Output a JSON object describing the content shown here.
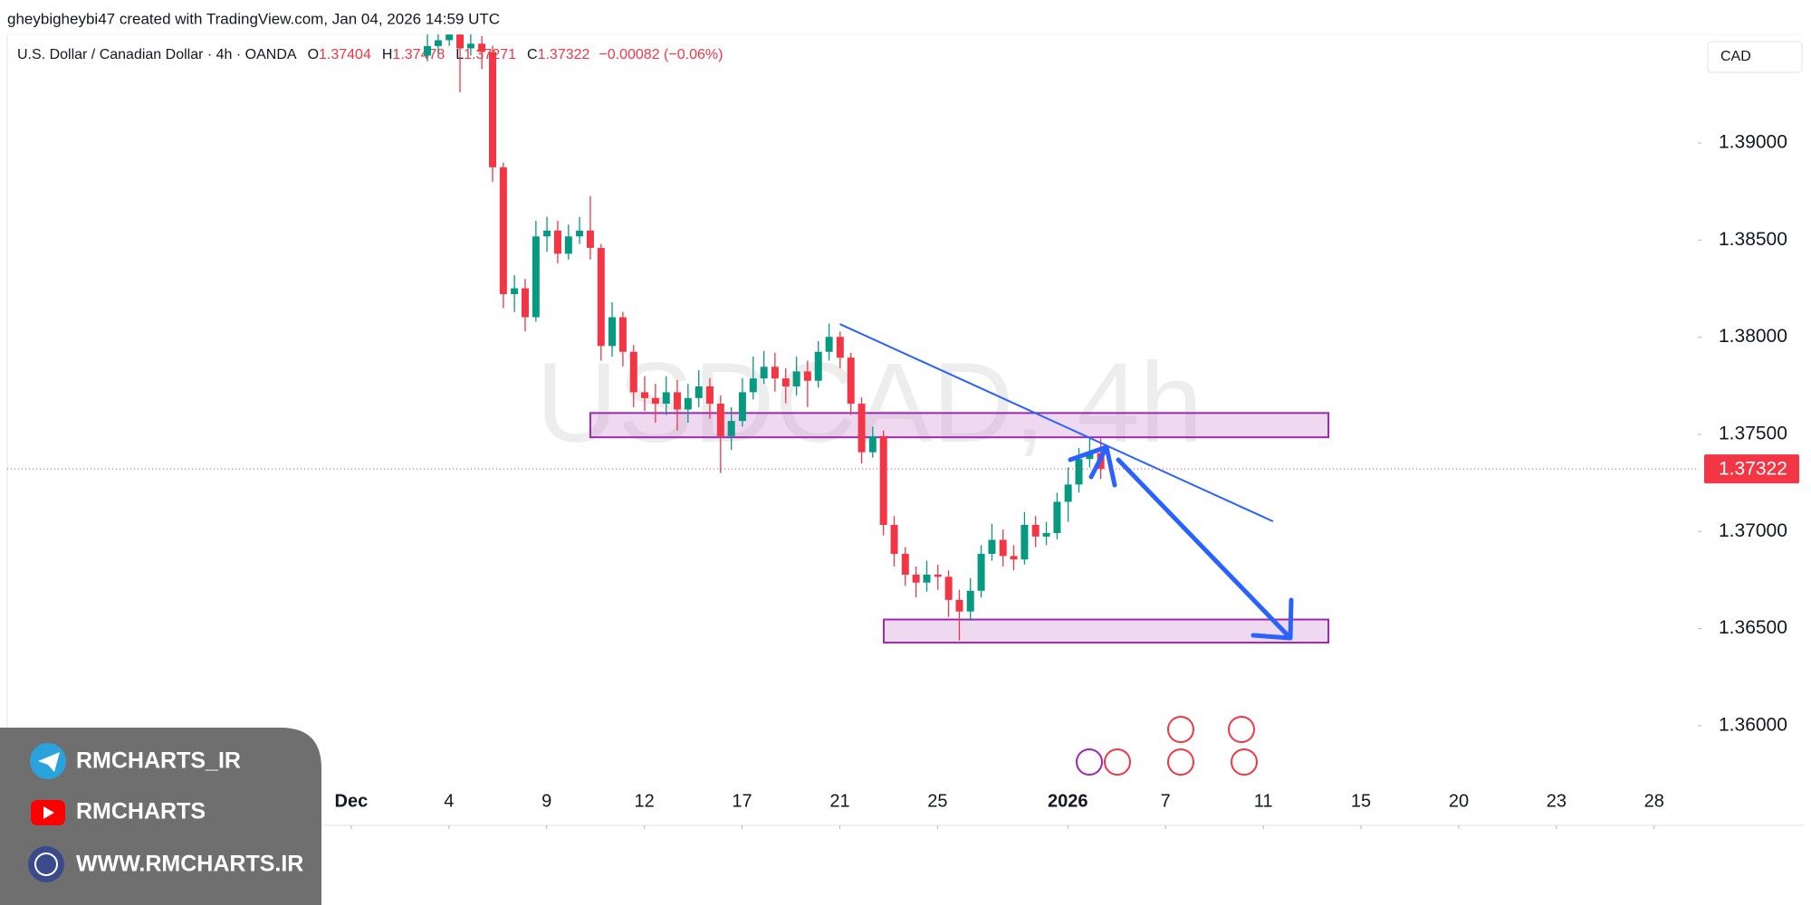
{
  "header": "gheybigheybi47 created with TradingView.com, Jan 04, 2026 14:59 UTC",
  "chart_data": {
    "type": "candlestick",
    "title": "U.S. Dollar / Canadian Dollar · 4h · OANDA",
    "ohlc": [
      {
        "key": "O",
        "value": 1.37404
      },
      {
        "key": "H",
        "value": 1.37478
      },
      {
        "key": "L",
        "value": 1.37271
      },
      {
        "key": "C",
        "value": 1.37322
      }
    ],
    "change": "−0.00082 (−0.06%)",
    "currency": "CAD",
    "watermark": "USDCAD, 4h",
    "up_color": "#089981",
    "down_color": "#f23645",
    "x": [
      2.34,
      2.67,
      3.01,
      3.34,
      3.67,
      4.01,
      4.34,
      4.67,
      5.01,
      5.34,
      5.67,
      6.01,
      6.34,
      6.67,
      7.01,
      7.34,
      7.67,
      8.01,
      8.34,
      8.67,
      9.01,
      9.34,
      9.67,
      10.01,
      10.34,
      10.67,
      11.01,
      11.34,
      11.67,
      12.01,
      12.34,
      12.67,
      13.01,
      13.34,
      13.67,
      14.01,
      14.34,
      14.67,
      15.01,
      15.34,
      15.67,
      16.01,
      16.34,
      16.67,
      17.01,
      17.34,
      17.67,
      18.01,
      18.34,
      18.67,
      19.01,
      19.34,
      19.67,
      20.01,
      20.34,
      20.67,
      21.01,
      21.34,
      21.67,
      22.01,
      22.34,
      22.67,
      23.01
    ],
    "open": [
      1.3945,
      1.39499,
      1.39529,
      1.39558,
      1.39487,
      1.39511,
      1.39469,
      1.38875,
      1.38222,
      1.38252,
      1.38103,
      1.38519,
      1.38549,
      1.3843,
      1.38519,
      1.38549,
      1.3846,
      1.37955,
      1.38103,
      1.37925,
      1.37717,
      1.37687,
      1.37658,
      1.37717,
      1.37628,
      1.37687,
      1.37747,
      1.37658,
      1.37491,
      1.37569,
      1.37717,
      1.37788,
      1.37848,
      1.37788,
      1.37747,
      1.37824,
      1.37776,
      1.37925,
      1.38002,
      1.37895,
      1.37658,
      1.37408,
      1.37491,
      1.37034,
      1.36885,
      1.36778,
      1.36737,
      1.36778,
      1.36767,
      1.36648,
      1.36588,
      1.36695,
      1.36885,
      1.36957,
      1.36874,
      1.36856,
      1.37034,
      1.36974,
      1.36992,
      1.37153,
      1.37242,
      1.37373,
      1.37404
    ],
    "high": [
      1.3956,
      1.3958,
      1.396,
      1.3959,
      1.3956,
      1.3955,
      1.395,
      1.389,
      1.3832,
      1.383,
      1.386,
      1.3862,
      1.386,
      1.3858,
      1.3862,
      1.38727,
      1.3848,
      1.3818,
      1.3813,
      1.3796,
      1.378,
      1.3776,
      1.378,
      1.3778,
      1.3776,
      1.3783,
      1.3779,
      1.377,
      1.3764,
      1.3779,
      1.379,
      1.3793,
      1.3792,
      1.3784,
      1.379,
      1.3788,
      1.3798,
      1.3807,
      1.3803,
      1.3792,
      1.3769,
      1.3754,
      1.3752,
      1.3708,
      1.3692,
      1.3682,
      1.3685,
      1.3683,
      1.368,
      1.367,
      1.3676,
      1.3693,
      1.3704,
      1.3701,
      1.3693,
      1.371,
      1.3708,
      1.3705,
      1.372,
      1.3733,
      1.3743,
      1.3748,
      1.37478
    ],
    "low": [
      1.3942,
      1.3946,
      1.395,
      1.39261,
      1.3945,
      1.3938,
      1.388,
      1.3815,
      1.3813,
      1.3803,
      1.3808,
      1.3844,
      1.3838,
      1.384,
      1.3848,
      1.384,
      1.3788,
      1.379,
      1.3785,
      1.3764,
      1.3762,
      1.3756,
      1.376,
      1.3752,
      1.3756,
      1.3764,
      1.3758,
      1.37301,
      1.3742,
      1.3754,
      1.3768,
      1.3776,
      1.3772,
      1.3766,
      1.377,
      1.3764,
      1.3774,
      1.3788,
      1.3784,
      1.376,
      1.3735,
      1.3738,
      1.3698,
      1.3682,
      1.3672,
      1.3666,
      1.3669,
      1.367,
      1.3656,
      1.3644,
      1.3654,
      1.3666,
      1.3685,
      1.3682,
      1.368,
      1.3683,
      1.3692,
      1.3693,
      1.3696,
      1.3705,
      1.372,
      1.3733,
      1.37271
    ],
    "close": [
      1.39499,
      1.39529,
      1.39558,
      1.39487,
      1.39511,
      1.39469,
      1.38875,
      1.38222,
      1.38252,
      1.38103,
      1.38519,
      1.38549,
      1.3843,
      1.38519,
      1.38549,
      1.3846,
      1.37955,
      1.38103,
      1.37925,
      1.37717,
      1.37687,
      1.37658,
      1.37717,
      1.37628,
      1.37687,
      1.37747,
      1.37658,
      1.37491,
      1.37569,
      1.37717,
      1.37788,
      1.37848,
      1.37788,
      1.37747,
      1.37824,
      1.37776,
      1.37925,
      1.38002,
      1.37895,
      1.37658,
      1.37408,
      1.37491,
      1.37034,
      1.36885,
      1.36778,
      1.36737,
      1.36778,
      1.36767,
      1.36648,
      1.36588,
      1.36695,
      1.36885,
      1.36957,
      1.36874,
      1.36856,
      1.37034,
      1.36974,
      1.36992,
      1.37153,
      1.37242,
      1.37373,
      1.37408,
      1.37322
    ],
    "last_price": 1.37322,
    "zones": [
      {
        "x": [
          7.34,
          30.0
        ],
        "y": [
          1.3761,
          1.37485
        ]
      },
      {
        "x": [
          16.35,
          30.0
        ],
        "y": [
          1.36547,
          1.36428
        ]
      }
    ],
    "trendline": {
      "x": [
        15.0,
        28.3
      ],
      "y": [
        1.38068,
        1.37052
      ]
    },
    "xlim": [
      -10.56,
      41.34
    ],
    "xticks": [
      {
        "value": 0,
        "label": "Dec"
      },
      {
        "value": 3,
        "label": "4"
      },
      {
        "value": 6,
        "label": "9"
      },
      {
        "value": 9,
        "label": "12"
      },
      {
        "value": 12,
        "label": "17"
      },
      {
        "value": 15,
        "label": "21"
      },
      {
        "value": 18,
        "label": "25"
      },
      {
        "value": 22,
        "label": "2026"
      },
      {
        "value": 25,
        "label": "7"
      },
      {
        "value": 28,
        "label": "11"
      },
      {
        "value": 31,
        "label": "15"
      },
      {
        "value": 34,
        "label": "20"
      },
      {
        "value": 37,
        "label": "23"
      },
      {
        "value": 40,
        "label": "28"
      }
    ],
    "ylim": [
      1.35697,
      1.39559
    ],
    "yticks": [
      {
        "value": 1.36,
        "label": "1.36000"
      },
      {
        "value": 1.365,
        "label": "1.36500"
      },
      {
        "value": 1.37,
        "label": "1.37000"
      },
      {
        "value": 1.375,
        "label": "1.37500"
      },
      {
        "value": 1.38,
        "label": "1.38000"
      },
      {
        "value": 1.385,
        "label": "1.38500"
      },
      {
        "value": 1.39,
        "label": "1.39000"
      }
    ]
  },
  "social": [
    "RMCHARTS_IR",
    "RMCHARTS",
    "WWW.RMCHARTS.IR"
  ]
}
